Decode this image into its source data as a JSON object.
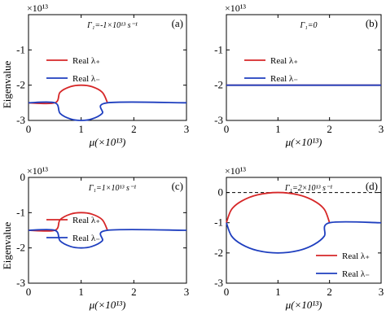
{
  "ylabel": "Eigenvalue",
  "chart_data": [
    {
      "type": "line",
      "panel_label": "(a)",
      "exponent_label": "×10¹³",
      "annotation": "Γ₁=-1×10¹³ s⁻¹",
      "xlabel": "μ(×10¹³)",
      "ylabel": "Eigenvalue",
      "xlim": [
        0,
        3
      ],
      "ylim": [
        -3,
        0
      ],
      "xticks": [
        0,
        1,
        2,
        3
      ],
      "yticks": [
        0,
        -1,
        -2,
        -3
      ],
      "ytick_labels": [
        "",
        "-1",
        "-2",
        "-3"
      ],
      "legend": {
        "placement": "middle-left",
        "entries": [
          "Real λ₊",
          "Real λ₋"
        ]
      },
      "series": [
        {
          "name": "Real λ₊",
          "color": "#d62728",
          "points": [
            [
              0,
              -2.5
            ],
            [
              0.5,
              -2.5
            ],
            [
              0.6,
              -2.2
            ],
            [
              0.8,
              -2.04
            ],
            [
              1.0,
              -2.0
            ],
            [
              1.2,
              -2.04
            ],
            [
              1.4,
              -2.2
            ],
            [
              1.5,
              -2.5
            ]
          ]
        },
        {
          "name": "Real λ₋",
          "color": "#1f3fbf",
          "points": [
            [
              0,
              -2.5
            ],
            [
              0.5,
              -2.5
            ],
            [
              0.6,
              -2.8
            ],
            [
              0.8,
              -2.96
            ],
            [
              1.0,
              -3.0
            ],
            [
              1.2,
              -2.96
            ],
            [
              1.4,
              -2.8
            ],
            [
              1.5,
              -2.5
            ],
            [
              3,
              -2.5
            ]
          ]
        }
      ]
    },
    {
      "type": "line",
      "panel_label": "(b)",
      "exponent_label": "×10¹³",
      "annotation": "Γ₁=0",
      "xlabel": "μ(×10¹³)",
      "xlim": [
        0,
        3
      ],
      "ylim": [
        -3,
        0
      ],
      "xticks": [
        0,
        1,
        2,
        3
      ],
      "yticks": [
        0,
        -1,
        -2,
        -3
      ],
      "ytick_labels": [
        "",
        "-1",
        "-2",
        "-3"
      ],
      "legend": {
        "placement": "middle-left",
        "entries": [
          "Real λ₊",
          "Real λ₋"
        ]
      },
      "series": [
        {
          "name": "Real λ₊",
          "color": "#d62728",
          "points": [
            [
              0,
              -2.0
            ],
            [
              3,
              -2.0
            ]
          ]
        },
        {
          "name": "Real λ₋",
          "color": "#1f3fbf",
          "points": [
            [
              0,
              -2.0
            ],
            [
              3,
              -2.0
            ]
          ]
        }
      ]
    },
    {
      "type": "line",
      "panel_label": "(c)",
      "exponent_label": "×10¹³",
      "annotation": "Γ₁=1×10¹³ s⁻¹",
      "xlabel": "μ(×10¹³)",
      "ylabel": "Eigenvalue",
      "xlim": [
        0,
        3
      ],
      "ylim": [
        -3,
        0
      ],
      "xticks": [
        0,
        1,
        2,
        3
      ],
      "yticks": [
        0,
        -1,
        -2,
        -3
      ],
      "ytick_labels": [
        "0",
        "-1",
        "-2",
        "-3"
      ],
      "legend": {
        "placement": "top-left",
        "entries": [
          "Real λ₊",
          "Real λ₋"
        ]
      },
      "series": [
        {
          "name": "Real λ₊",
          "color": "#d62728",
          "points": [
            [
              0,
              -1.5
            ],
            [
              0.5,
              -1.5
            ],
            [
              0.6,
              -1.2
            ],
            [
              0.8,
              -1.04
            ],
            [
              1.0,
              -1.0
            ],
            [
              1.2,
              -1.04
            ],
            [
              1.4,
              -1.2
            ],
            [
              1.5,
              -1.5
            ]
          ]
        },
        {
          "name": "Real λ₋",
          "color": "#1f3fbf",
          "points": [
            [
              0,
              -1.5
            ],
            [
              0.5,
              -1.5
            ],
            [
              0.6,
              -1.8
            ],
            [
              0.8,
              -1.96
            ],
            [
              1.0,
              -2.0
            ],
            [
              1.2,
              -1.96
            ],
            [
              1.4,
              -1.8
            ],
            [
              1.5,
              -1.5
            ],
            [
              3,
              -1.5
            ]
          ]
        }
      ]
    },
    {
      "type": "line",
      "panel_label": "(d)",
      "exponent_label": "×10¹³",
      "annotation": "Γ₁=2×10¹³ s⁻¹",
      "xlabel": "μ(×10¹³)",
      "xlim": [
        0,
        3
      ],
      "ylim": [
        -3,
        0.5
      ],
      "xticks": [
        0,
        1,
        2,
        3
      ],
      "yticks": [
        0,
        -1,
        -2,
        -3
      ],
      "ytick_labels": [
        "0",
        "-1",
        "-2",
        "-3"
      ],
      "reference_line": {
        "y": 0,
        "style": "dashed",
        "color": "#000000"
      },
      "legend": {
        "placement": "bottom-right",
        "entries": [
          "Real λ₊",
          "Real λ₋"
        ]
      },
      "series": [
        {
          "name": "Real λ₊",
          "color": "#d62728",
          "points": [
            [
              0,
              -1.0
            ],
            [
              0.1,
              -0.56
            ],
            [
              0.3,
              -0.28
            ],
            [
              0.6,
              -0.08
            ],
            [
              1.0,
              0.0
            ],
            [
              1.4,
              -0.08
            ],
            [
              1.7,
              -0.28
            ],
            [
              1.9,
              -0.56
            ],
            [
              2.0,
              -1.0
            ]
          ]
        },
        {
          "name": "Real λ₋",
          "color": "#1f3fbf",
          "points": [
            [
              0,
              -1.0
            ],
            [
              0.1,
              -1.44
            ],
            [
              0.3,
              -1.72
            ],
            [
              0.6,
              -1.92
            ],
            [
              1.0,
              -2.0
            ],
            [
              1.4,
              -1.92
            ],
            [
              1.7,
              -1.72
            ],
            [
              1.9,
              -1.44
            ],
            [
              2.0,
              -1.0
            ],
            [
              3,
              -1.0
            ]
          ]
        }
      ]
    }
  ]
}
